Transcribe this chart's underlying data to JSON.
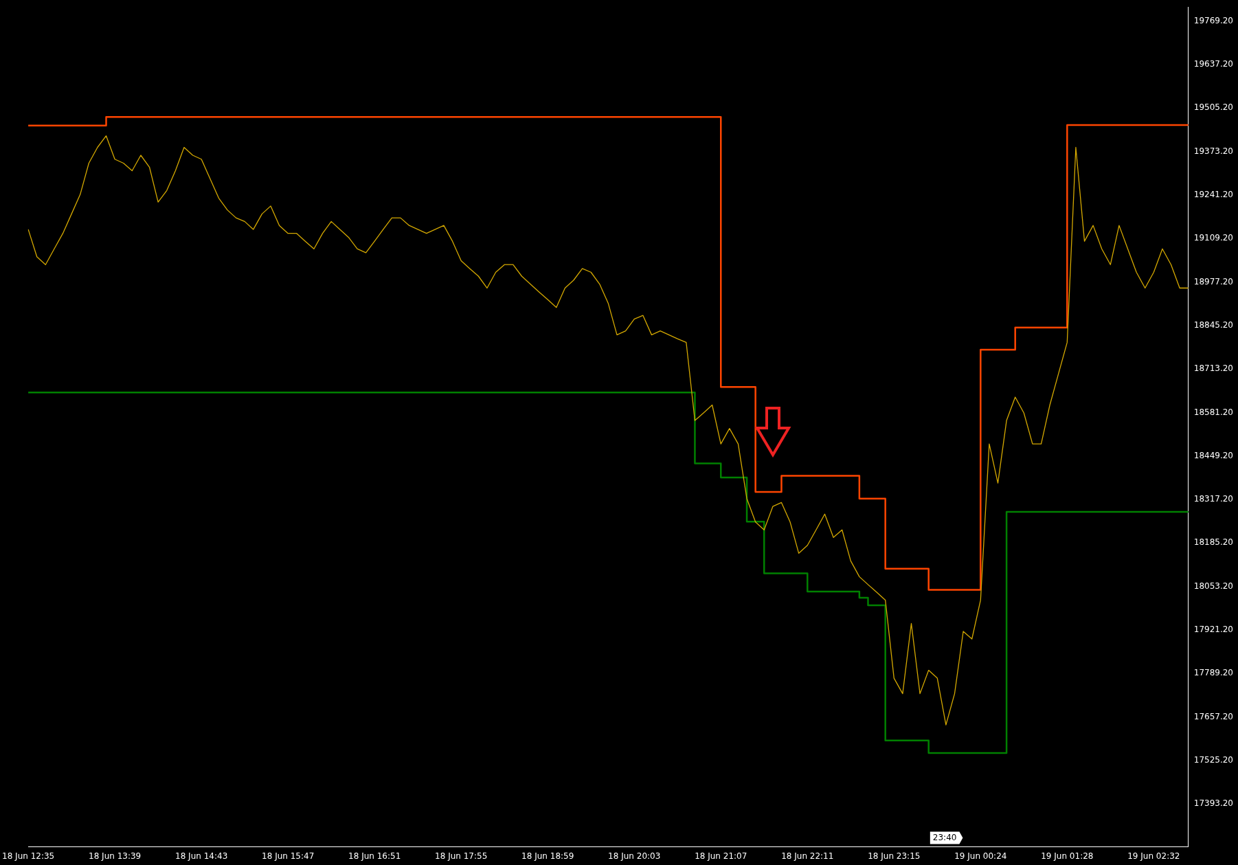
{
  "chart_data": {
    "type": "line",
    "categories": [
      "18 Jun 12:35",
      null,
      null,
      null,
      null,
      null,
      null,
      null,
      null,
      null,
      "18 Jun 13:39",
      null,
      null,
      null,
      null,
      null,
      null,
      null,
      null,
      null,
      "18 Jun 14:43",
      null,
      null,
      null,
      null,
      null,
      null,
      null,
      null,
      null,
      "18 Jun 15:47",
      null,
      null,
      null,
      null,
      null,
      null,
      null,
      null,
      null,
      "18 Jun 16:51",
      null,
      null,
      null,
      null,
      null,
      null,
      null,
      null,
      null,
      "18 Jun 17:55",
      null,
      null,
      null,
      null,
      null,
      null,
      null,
      null,
      null,
      "18 Jun 18:59",
      null,
      null,
      null,
      null,
      null,
      null,
      null,
      null,
      null,
      "18 Jun 20:03",
      null,
      null,
      null,
      null,
      null,
      null,
      null,
      null,
      null,
      "18 Jun 21:07",
      null,
      null,
      null,
      null,
      null,
      null,
      null,
      null,
      null,
      "18 Jun 22:11",
      null,
      null,
      null,
      null,
      null,
      null,
      null,
      null,
      null,
      "18 Jun 23:15",
      null,
      null,
      null,
      null,
      null,
      null,
      null,
      null,
      null,
      "19 Jun 00:24",
      null,
      null,
      null,
      null,
      null,
      null,
      null,
      null,
      null,
      "19 Jun 01:28",
      null,
      null,
      null,
      null,
      null,
      null,
      null,
      null,
      null,
      "19 Jun 02:32",
      null,
      null,
      null,
      null
    ],
    "ylim": [
      17263,
      19812
    ],
    "yticks": [
      {
        "value": 17393.2,
        "label": "17393.20"
      },
      {
        "value": 17525.2,
        "label": "17525.20"
      },
      {
        "value": 17657.2,
        "label": "17657.20"
      },
      {
        "value": 17789.2,
        "label": "17789.20"
      },
      {
        "value": 17921.2,
        "label": "17921.20"
      },
      {
        "value": 18053.2,
        "label": "18053.20"
      },
      {
        "value": 18185.2,
        "label": "18185.20"
      },
      {
        "value": 18317.2,
        "label": "18317.20"
      },
      {
        "value": 18449.2,
        "label": "18449.20"
      },
      {
        "value": 18581.2,
        "label": "18581.20"
      },
      {
        "value": 18713.2,
        "label": "18713.20"
      },
      {
        "value": 18845.2,
        "label": "18845.20"
      },
      {
        "value": 18977.2,
        "label": "18977.20"
      },
      {
        "value": 19109.2,
        "label": "19109.20"
      },
      {
        "value": 19241.2,
        "label": "19241.20"
      },
      {
        "value": 19373.2,
        "label": "19373.20"
      },
      {
        "value": 19505.2,
        "label": "19505.20"
      },
      {
        "value": 19637.2,
        "label": "19637.20"
      },
      {
        "value": 19769.2,
        "label": "19769.20"
      }
    ],
    "grid": false,
    "legend": false,
    "marker": "none",
    "annotations": [
      "23:40"
    ],
    "series": [
      {
        "type": "line",
        "color": "#d4a800",
        "values": [
          19137,
          19054,
          19030,
          19078,
          19125,
          19184,
          19243,
          19338,
          19386,
          19421,
          19350,
          19338,
          19315,
          19362,
          19326,
          19220,
          19255,
          19315,
          19386,
          19362,
          19350,
          19291,
          19232,
          19196,
          19172,
          19161,
          19137,
          19184,
          19208,
          19149,
          19125,
          19125,
          19101,
          19078,
          19125,
          19161,
          19137,
          19113,
          19078,
          19066,
          19101,
          19137,
          19172,
          19172,
          19149,
          19137,
          19125,
          19137,
          19149,
          19101,
          19042,
          19018,
          18995,
          18959,
          19007,
          19030,
          19030,
          18995,
          18971,
          18947,
          18924,
          18900,
          18959,
          18983,
          19018,
          19007,
          18971,
          18912,
          18817,
          18829,
          18865,
          18876,
          18817,
          18829,
          18817,
          18805,
          18794,
          18557,
          18580,
          18604,
          18486,
          18533,
          18486,
          18320,
          18249,
          18225,
          18296,
          18308,
          18249,
          18154,
          18178,
          18225,
          18273,
          18202,
          18225,
          18131,
          18083,
          18059,
          18036,
          18012,
          17775,
          17728,
          17941,
          17728,
          17799,
          17775,
          17633,
          17728,
          17917,
          17894,
          18012,
          18486,
          18367,
          18557,
          18628,
          18580,
          18486,
          18486,
          18604,
          18699,
          18794,
          19386,
          19101,
          19149,
          19078,
          19030,
          19149,
          19078,
          19007,
          18959,
          19007,
          19078,
          19030,
          18959,
          18959
        ]
      },
      {
        "type": "step",
        "color": "#ff4500",
        "values": [
          19452,
          19452,
          19452,
          19452,
          19452,
          19452,
          19452,
          19452,
          19452,
          19478,
          19478,
          19478,
          19478,
          19478,
          19478,
          19478,
          19478,
          19478,
          19478,
          19478,
          19478,
          19478,
          19478,
          19478,
          19478,
          19478,
          19478,
          19478,
          19478,
          19478,
          19478,
          19478,
          19478,
          19478,
          19478,
          19478,
          19478,
          19478,
          19478,
          19478,
          19478,
          19478,
          19478,
          19478,
          19478,
          19478,
          19478,
          19478,
          19478,
          19478,
          19478,
          19478,
          19478,
          19478,
          19478,
          19478,
          19478,
          19478,
          19478,
          19478,
          19478,
          19478,
          19478,
          19478,
          19478,
          19478,
          19478,
          19478,
          19478,
          19478,
          19478,
          19478,
          19478,
          19478,
          19478,
          19478,
          19478,
          19478,
          19478,
          19478,
          18659,
          18659,
          18659,
          18659,
          18340,
          18340,
          18340,
          18389,
          18389,
          18389,
          18389,
          18389,
          18389,
          18389,
          18389,
          18389,
          18320,
          18320,
          18320,
          18107,
          18107,
          18107,
          18107,
          18107,
          18043,
          18043,
          18043,
          18043,
          18043,
          18043,
          18772,
          18772,
          18772,
          18772,
          18839,
          18839,
          18839,
          18839,
          18839,
          18839,
          19454,
          19454,
          19454,
          19454,
          19454,
          19454,
          19454,
          19454,
          19454,
          19454,
          19454,
          19454,
          19454,
          19454,
          19454
        ]
      },
      {
        "type": "step",
        "color": "#008000",
        "values": [
          18642,
          18642,
          18642,
          18642,
          18642,
          18642,
          18642,
          18642,
          18642,
          18642,
          18642,
          18642,
          18642,
          18642,
          18642,
          18642,
          18642,
          18642,
          18642,
          18642,
          18642,
          18642,
          18642,
          18642,
          18642,
          18642,
          18642,
          18642,
          18642,
          18642,
          18642,
          18642,
          18642,
          18642,
          18642,
          18642,
          18642,
          18642,
          18642,
          18642,
          18642,
          18642,
          18642,
          18642,
          18642,
          18642,
          18642,
          18642,
          18642,
          18642,
          18642,
          18642,
          18642,
          18642,
          18642,
          18642,
          18642,
          18642,
          18642,
          18642,
          18642,
          18642,
          18642,
          18642,
          18642,
          18642,
          18642,
          18642,
          18642,
          18642,
          18642,
          18642,
          18642,
          18642,
          18642,
          18642,
          18642,
          18427,
          18427,
          18427,
          18384,
          18384,
          18384,
          18250,
          18250,
          18093,
          18093,
          18093,
          18093,
          18093,
          18038,
          18038,
          18038,
          18038,
          18038,
          18038,
          18019,
          17996,
          17996,
          17586,
          17586,
          17586,
          17586,
          17586,
          17548,
          17548,
          17548,
          17548,
          17548,
          17548,
          17548,
          17548,
          17548,
          18280,
          18280,
          18280,
          18280,
          18280,
          18280,
          18280,
          18280,
          18280,
          18280,
          18280,
          18280,
          18280,
          18280,
          18280,
          18280,
          18280,
          18280,
          18280,
          18280,
          18280,
          18280
        ]
      }
    ]
  }
}
